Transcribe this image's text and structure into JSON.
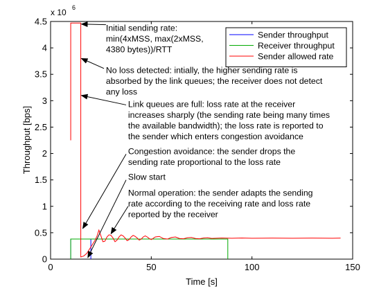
{
  "chart_data": {
    "type": "line",
    "xlabel": "Time [s]",
    "ylabel": "Throughput [bps]",
    "xlim": [
      0,
      150
    ],
    "ylim": [
      0,
      4500000
    ],
    "y_exponent_label": "x 10",
    "y_exponent_power": "6",
    "x_ticks": [
      0,
      50,
      100,
      150
    ],
    "y_ticks": [
      0,
      0.5,
      1,
      1.5,
      2,
      2.5,
      3,
      3.5,
      4,
      4.5
    ],
    "grid": false,
    "legend_position": "top-right",
    "series": [
      {
        "name": "Sender throughput",
        "color": "#0000ff",
        "points": [
          [
            10,
            0
          ],
          [
            10,
            380000
          ],
          [
            20,
            380000
          ],
          [
            20,
            0
          ]
        ]
      },
      {
        "name": "Receiver throughput",
        "color": "#00aa00",
        "points": [
          [
            10,
            0
          ],
          [
            10,
            380000
          ],
          [
            17,
            380000
          ],
          [
            19,
            380000
          ],
          [
            21,
            380000
          ],
          [
            30,
            380000
          ],
          [
            40,
            380000
          ],
          [
            50,
            380000
          ],
          [
            60,
            380000
          ],
          [
            70,
            380000
          ],
          [
            80,
            380000
          ],
          [
            88,
            380000
          ],
          [
            88,
            0
          ]
        ]
      },
      {
        "name": "Sender allowed rate",
        "color": "#ff0000",
        "points": [
          [
            10,
            2250000
          ],
          [
            10,
            4470000
          ],
          [
            15,
            4470000
          ],
          [
            15,
            40000
          ],
          [
            16.5,
            60000
          ],
          [
            18,
            110000
          ],
          [
            19.5,
            200000
          ],
          [
            21,
            290000
          ],
          [
            22,
            350000
          ],
          [
            23,
            430000
          ],
          [
            24,
            550000
          ],
          [
            25,
            440000
          ],
          [
            26,
            330000
          ],
          [
            27,
            340000
          ],
          [
            28,
            420000
          ],
          [
            29,
            460000
          ],
          [
            30,
            450000
          ],
          [
            31,
            400000
          ],
          [
            32,
            330000
          ],
          [
            33,
            360000
          ],
          [
            34,
            420000
          ],
          [
            35,
            460000
          ],
          [
            36,
            440000
          ],
          [
            37,
            400000
          ],
          [
            38,
            350000
          ],
          [
            39,
            370000
          ],
          [
            40,
            420000
          ],
          [
            41,
            450000
          ],
          [
            42,
            430000
          ],
          [
            43,
            400000
          ],
          [
            44,
            360000
          ],
          [
            45,
            380000
          ],
          [
            46,
            420000
          ],
          [
            47,
            440000
          ],
          [
            48,
            420000
          ],
          [
            49,
            390000
          ],
          [
            50,
            370000
          ],
          [
            52,
            420000
          ],
          [
            54,
            430000
          ],
          [
            56,
            390000
          ],
          [
            58,
            380000
          ],
          [
            60,
            410000
          ],
          [
            62,
            420000
          ],
          [
            64,
            390000
          ],
          [
            66,
            385000
          ],
          [
            68,
            405000
          ],
          [
            70,
            410000
          ],
          [
            72,
            390000
          ],
          [
            74,
            385000
          ],
          [
            76,
            400000
          ],
          [
            78,
            405000
          ],
          [
            80,
            392000
          ],
          [
            85,
            400000
          ],
          [
            90,
            395000
          ],
          [
            95,
            400000
          ],
          [
            100,
            395000
          ],
          [
            110,
            398000
          ],
          [
            120,
            395000
          ],
          [
            130,
            398000
          ],
          [
            140,
            395000
          ],
          [
            144,
            398000
          ]
        ]
      }
    ],
    "annotations": [
      {
        "lines": [
          "Initial sending rate:",
          "min(4xMSS, max(2xMSS,",
          "4380 bytes))/RTT"
        ],
        "text_at": [
          27.5,
          4320000
        ],
        "arrow_from": [
          27.5,
          4440000
        ],
        "arrow_to": [
          15.3,
          4450000
        ]
      },
      {
        "lines": [
          "No loss detected: intially, the higher sending rate is",
          "absorbed by the link queues; the receiver does not detect",
          "any loss"
        ],
        "text_at": [
          27.5,
          3520000
        ],
        "arrow_from": [
          26.5,
          3610000
        ],
        "arrow_to": [
          15.3,
          3800000
        ]
      },
      {
        "lines": [
          "Link queues are full: loss rate at the receiver",
          "increases sharply (the sending rate being many times",
          "the available bandwidth); the loss rate is reported to",
          "the sender which enters congestion avoidance"
        ],
        "text_at": [
          38.5,
          2880000
        ],
        "arrow_from": [
          37.5,
          2920000
        ],
        "arrow_to": [
          15.3,
          3100000
        ]
      },
      {
        "lines": [
          "Congestion avoidance: the sender drops the",
          "sending rate proportional to the loss rate"
        ],
        "text_at": [
          38.5,
          1990000
        ],
        "arrow_from": [
          37.5,
          1990000
        ],
        "arrow_to": [
          16,
          580000
        ]
      },
      {
        "lines": [
          "Slow start"
        ],
        "text_at": [
          38.5,
          1500000
        ],
        "arrow_from": [
          37.5,
          1500000
        ],
        "arrow_to": [
          18.5,
          30000
        ]
      },
      {
        "lines": [
          "Normal operation: the sender adapts the sending",
          "rate according to the receiving rate and loss rate",
          "reported by the receiver"
        ],
        "text_at": [
          38.5,
          1200000
        ],
        "arrow_from": [
          38.5,
          1000000
        ],
        "arrow_to": [
          30,
          480000
        ]
      }
    ]
  }
}
